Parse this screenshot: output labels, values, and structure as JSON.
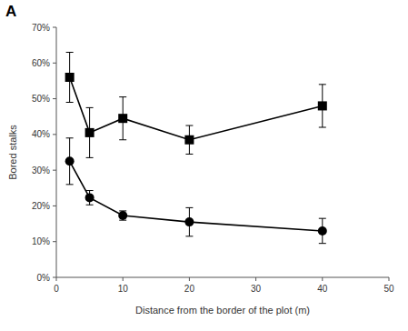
{
  "chart_data": {
    "type": "line",
    "title": "A",
    "x_label": "Distance from the border of the plot (m)",
    "y_label": "Bored stalks",
    "xlim": [
      0,
      50
    ],
    "xticks": [
      0,
      10,
      20,
      30,
      40,
      50
    ],
    "ylim": [
      0,
      70
    ],
    "yticks": [
      {
        "value": 0,
        "label": "0%"
      },
      {
        "value": 10,
        "label": "10%"
      },
      {
        "value": 20,
        "label": "20%"
      },
      {
        "value": 30,
        "label": "30%"
      },
      {
        "value": 40,
        "label": "40%"
      },
      {
        "value": 50,
        "label": "50%"
      },
      {
        "value": 60,
        "label": "60%"
      },
      {
        "value": 70,
        "label": "70%"
      }
    ],
    "grid": false,
    "series": [
      {
        "color": "#000000",
        "marker": "square",
        "line_style": "solid",
        "x": [
          2,
          5,
          10,
          20,
          40
        ],
        "values": [
          56,
          40.5,
          44.5,
          38.5,
          48
        ],
        "errors": [
          7,
          7,
          6,
          4,
          6
        ]
      },
      {
        "color": "#000000",
        "marker": "circle",
        "line_style": "solid",
        "x": [
          2,
          5,
          10,
          20,
          40
        ],
        "values": [
          32.5,
          22.3,
          17.3,
          15.5,
          13
        ],
        "errors": [
          6.5,
          2,
          1.3,
          4,
          3.5
        ]
      }
    ]
  }
}
